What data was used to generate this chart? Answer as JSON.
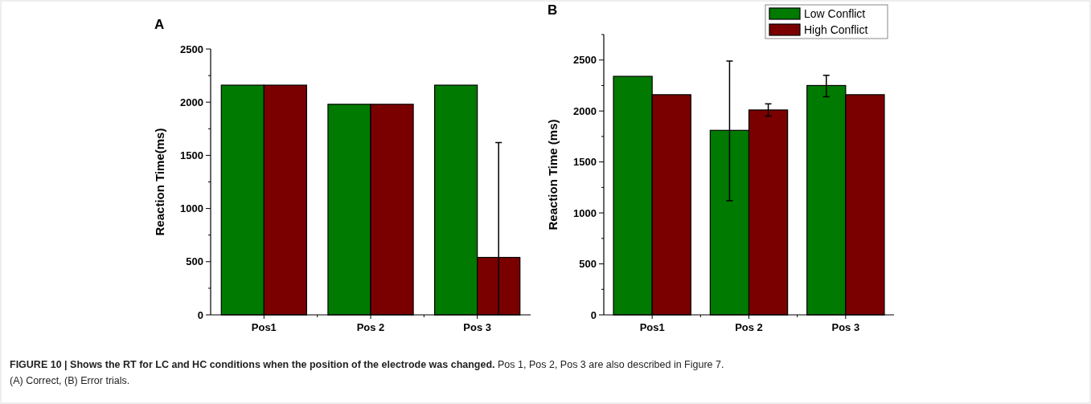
{
  "chart_data": [
    {
      "type": "bar",
      "title": "A",
      "ylabel": "Reaction Time(ms)",
      "categories": [
        "Pos1",
        "Pos 2",
        "Pos 3"
      ],
      "ylim": [
        0,
        2500
      ],
      "yticks": [
        0,
        {
          "value": 250,
          "label": null
        },
        500,
        {
          "value": 750,
          "label": null
        },
        1000,
        {
          "value": 1250,
          "label": null
        },
        1500,
        {
          "value": 1750,
          "label": null
        },
        2000,
        {
          "value": 2250,
          "label": null
        },
        2500
      ],
      "legend": false,
      "series": [
        {
          "color": "#007a00",
          "values": [
            2160,
            1980,
            2160
          ]
        },
        {
          "color": "#7a0000",
          "values": [
            2160,
            1980,
            540
          ],
          "errors": [
            null,
            null,
            [
              0,
              1620
            ]
          ]
        }
      ],
      "annotations": [
        "FIGURE 10 | Shows the RT for LC and HC conditions when the position of the electrode was changed.",
        "Pos 1, Pos 2, Pos 3 are also described in Figure 7.",
        "(A) Correct, (B) Error trials."
      ]
    },
    {
      "type": "bar",
      "title": "B",
      "ylabel": "Reaction Time (ms)",
      "categories": [
        "Pos1",
        "Pos 2",
        "Pos 3"
      ],
      "ylim": [
        0,
        2750
      ],
      "yticks": [
        0,
        {
          "value": 250,
          "label": null
        },
        500,
        {
          "value": 750,
          "label": null
        },
        1000,
        {
          "value": 1250,
          "label": null
        },
        1500,
        {
          "value": 1750,
          "label": null
        },
        2000,
        {
          "value": 2250,
          "label": null
        },
        2500,
        {
          "value": 2750,
          "label": null
        }
      ],
      "legend": "top right",
      "series": [
        {
          "name": "Low Conflict",
          "color": "#007a00",
          "values": [
            2340,
            1810,
            2250
          ],
          "errors": [
            null,
            [
              1120,
              2490
            ],
            [
              2140,
              2350
            ]
          ]
        },
        {
          "name": "High Conflict",
          "color": "#7a0000",
          "values": [
            2160,
            2010,
            2160
          ],
          "errors": [
            null,
            60,
            null
          ]
        }
      ]
    }
  ]
}
